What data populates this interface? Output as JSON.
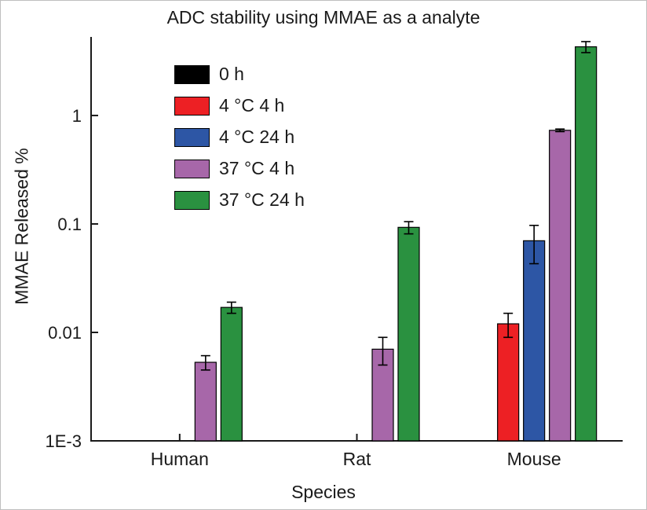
{
  "chart_data": {
    "type": "bar",
    "title": "ADC stability using MMAE as a analyte",
    "xlabel": "Species",
    "ylabel": "MMAE Released %",
    "yscale": "log",
    "ylim": [
      0.001,
      5.3
    ],
    "grid": false,
    "legend_position": "top-left-inside",
    "categories": [
      "Human",
      "Rat",
      "Mouse"
    ],
    "yticks": [
      {
        "value": 0.001,
        "label": "1E-3"
      },
      {
        "value": 0.01,
        "label": "0.01"
      },
      {
        "value": 0.1,
        "label": "0.1"
      },
      {
        "value": 1,
        "label": "1"
      }
    ],
    "series": [
      {
        "name": "0 h",
        "color": "#000000",
        "values": [
          null,
          null,
          null
        ],
        "errors": [
          null,
          null,
          null
        ]
      },
      {
        "name": "4 °C 4 h",
        "color": "#ed2024",
        "values": [
          null,
          null,
          0.012
        ],
        "errors": [
          null,
          null,
          0.003
        ]
      },
      {
        "name": "4 °C 24 h",
        "color": "#2d56a5",
        "values": [
          null,
          null,
          0.07
        ],
        "errors": [
          null,
          null,
          0.027
        ]
      },
      {
        "name": "37 °C 4 h",
        "color": "#a767a9",
        "values": [
          0.0053,
          0.007,
          0.73
        ],
        "errors": [
          0.0008,
          0.002,
          0.02
        ]
      },
      {
        "name": "37 °C 24 h",
        "color": "#2a9140",
        "values": [
          0.017,
          0.093,
          4.3
        ],
        "errors": [
          0.002,
          0.012,
          0.5
        ]
      }
    ]
  }
}
